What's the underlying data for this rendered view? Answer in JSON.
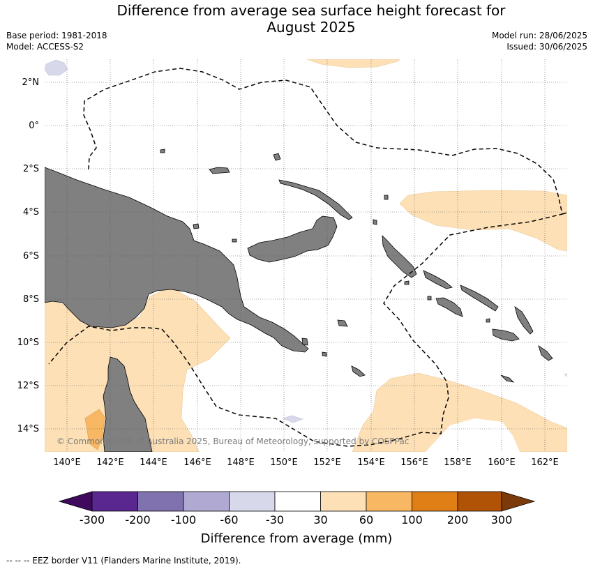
{
  "title": {
    "line1": "Difference from average sea surface height forecast for",
    "line2": "August 2025"
  },
  "meta": {
    "base_period": "Base period: 1981-2018",
    "model": "Model: ACCESS-S2",
    "model_run": "Model run: 28/06/2025",
    "issued": "Issued: 30/06/2025"
  },
  "map": {
    "lat_labels": [
      "2°N",
      "0°",
      "2°S",
      "4°S",
      "6°S",
      "8°S",
      "10°S",
      "12°S",
      "14°S"
    ],
    "lon_labels": [
      "140°E",
      "142°E",
      "144°E",
      "146°E",
      "148°E",
      "150°E",
      "152°E",
      "154°E",
      "156°E",
      "158°E",
      "160°E",
      "162°E"
    ],
    "credit": "© Commonwealth of Australia 2025, Bureau of Meteorology, supported by COSPPac"
  },
  "colorbar": {
    "ticks": [
      "-300",
      "-200",
      "-100",
      "-60",
      "-30",
      "30",
      "60",
      "100",
      "200",
      "300"
    ],
    "colors": [
      "#3f0a5e",
      "#5a2790",
      "#7f72ae",
      "#b0a9d2",
      "#d7d9ea",
      "#ffffff",
      "#fde0b6",
      "#f8b762",
      "#df7f15",
      "#b05306",
      "#7c3a0b"
    ],
    "label": "Difference from average (mm)"
  },
  "legend": {
    "eez": "--  --  -- EEZ border V11 (Flanders Marine Institute, 2019)."
  }
}
